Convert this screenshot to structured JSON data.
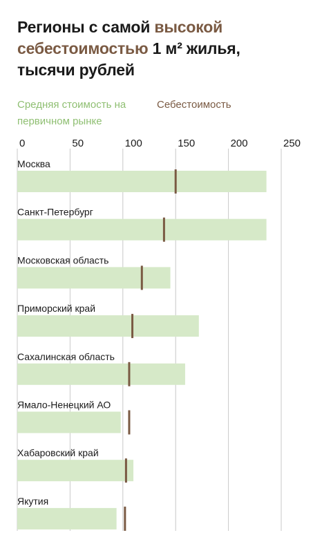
{
  "title": {
    "part1": "Регионы с самой ",
    "highlight": "высокой себестоимостью",
    "part2": " 1 м² жилья, тысячи рублей"
  },
  "colors": {
    "price_bar": "#d6e9c8",
    "cost_marker": "#7a5a43",
    "price_legend": "#8fbf72",
    "grid": "#c8c8c8"
  },
  "chart_data": {
    "type": "bar",
    "orientation": "horizontal",
    "legend": [
      "Средняя стоимость на первичном рынке",
      "Себестоимость"
    ],
    "xlim": [
      0,
      250
    ],
    "xticks": [
      "0",
      "50",
      "100",
      "150",
      "200",
      "250"
    ],
    "categories": [
      "Москва",
      "Санкт-Петербург",
      "Московская область",
      "Приморский край",
      "Сахалинская область",
      "Ямало-Ненецкий АО",
      "Хабаровский край",
      "Якутия"
    ],
    "series": [
      {
        "name": "Средняя стоимость на первичном рынке",
        "values": [
          236,
          236,
          145,
          172,
          159,
          98,
          110,
          94
        ]
      },
      {
        "name": "Себестоимость",
        "values": [
          150,
          139,
          118,
          109,
          106,
          106,
          103,
          102
        ]
      }
    ],
    "grid": "vertical",
    "legend_position": "top-left"
  }
}
